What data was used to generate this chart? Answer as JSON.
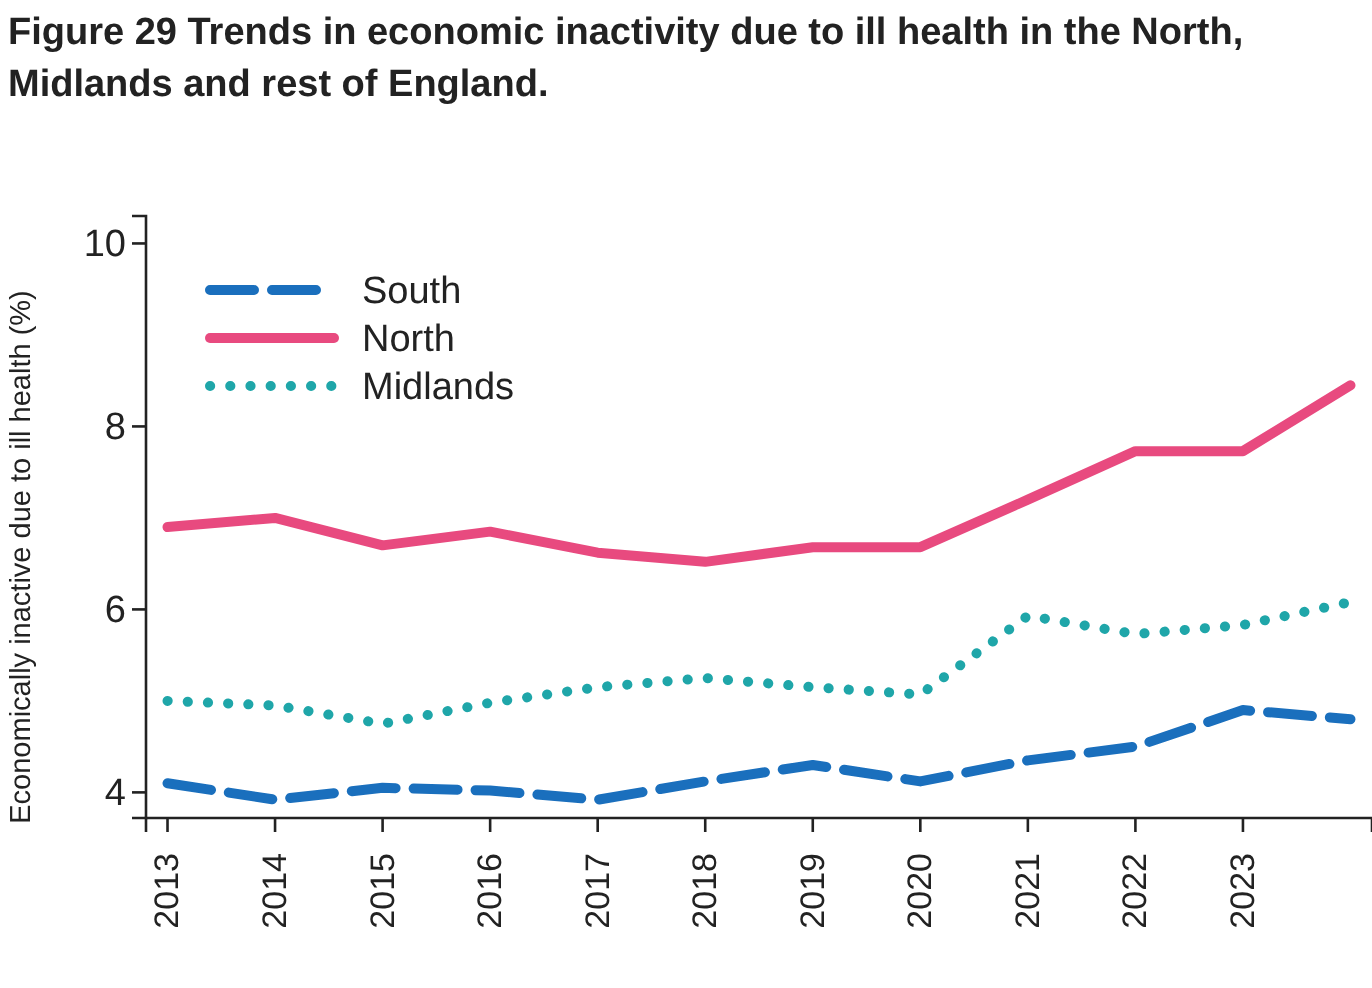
{
  "chart_data": {
    "type": "line",
    "title": "Figure 29 Trends in economic inactivity due to ill health in the North, Midlands and rest of England.",
    "ylabel": "Economically inactive due to ill health (%)",
    "x": [
      2013,
      2014,
      2015,
      2016,
      2017,
      2018,
      2019,
      2020,
      2021,
      2022,
      2023,
      2024
    ],
    "xlim": [
      2012.8,
      2024.2
    ],
    "xticks": [
      2013,
      2014,
      2015,
      2016,
      2017,
      2018,
      2019,
      2020,
      2021,
      2022,
      2023
    ],
    "ylim": [
      3.72,
      10.3
    ],
    "yticks": [
      4,
      6,
      8,
      10
    ],
    "grid": false,
    "legend": "top left",
    "marker": "none",
    "series": [
      {
        "name": "South",
        "color": "#1a6fbd",
        "line_style": "dashed",
        "values": [
          4.1,
          3.92,
          4.05,
          4.02,
          3.92,
          4.12,
          4.3,
          4.12,
          4.35,
          4.5,
          4.9,
          4.8
        ]
      },
      {
        "name": "North",
        "color": "#e84a7f",
        "line_style": "solid",
        "values": [
          6.9,
          7.0,
          6.7,
          6.85,
          6.62,
          6.52,
          6.68,
          6.68,
          7.2,
          7.73,
          7.73,
          8.45
        ]
      },
      {
        "name": "Midlands",
        "color": "#1fa6a9",
        "line_style": "dotted",
        "values": [
          5.0,
          4.95,
          4.75,
          4.98,
          5.15,
          5.25,
          5.15,
          5.07,
          5.93,
          5.73,
          5.83,
          6.08
        ]
      }
    ]
  }
}
